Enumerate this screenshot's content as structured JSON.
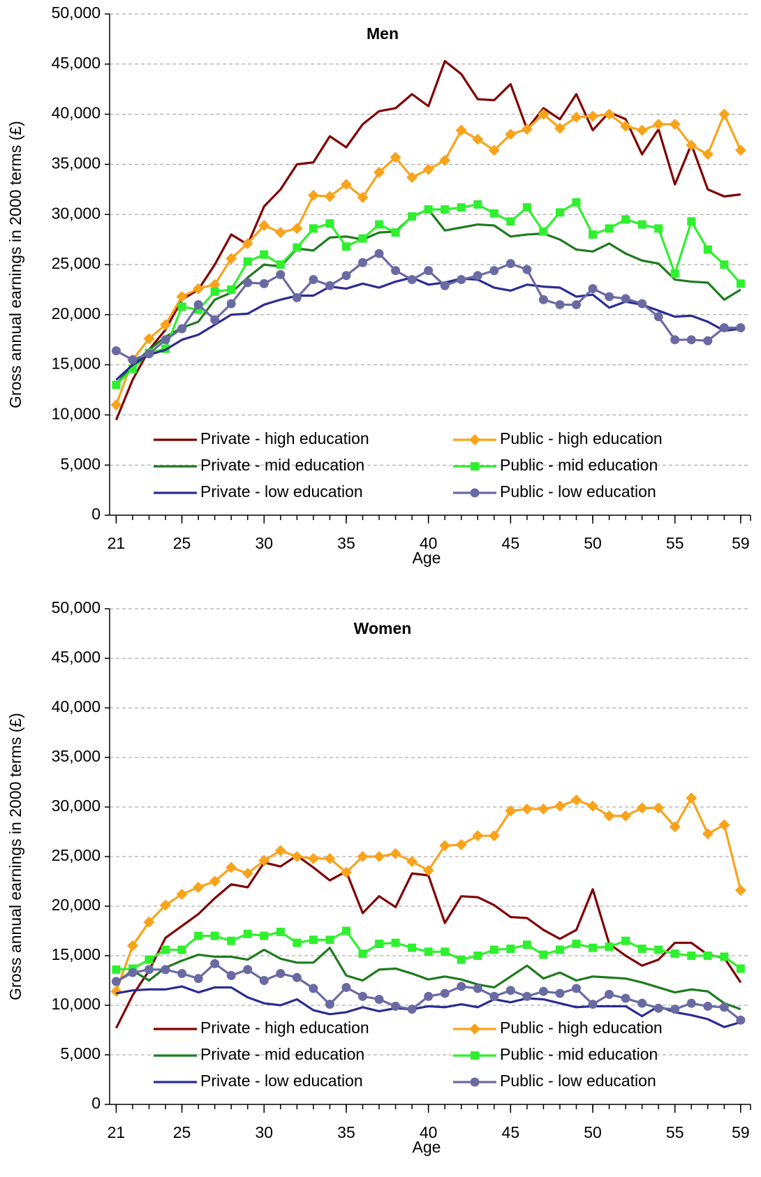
{
  "chart_data": [
    {
      "type": "line",
      "title": "Men",
      "ylabel": "Gross annual earnings in 2000 terms (£)",
      "xlabel": "Age",
      "x": [
        21,
        22,
        23,
        24,
        25,
        26,
        27,
        28,
        29,
        30,
        31,
        32,
        33,
        34,
        35,
        36,
        37,
        38,
        39,
        40,
        41,
        42,
        43,
        44,
        45,
        46,
        47,
        48,
        49,
        50,
        51,
        52,
        53,
        54,
        55,
        56,
        57,
        58,
        59
      ],
      "xlim": [
        20.6,
        59.6
      ],
      "xticks": [
        21,
        25,
        30,
        35,
        40,
        45,
        50,
        55,
        59
      ],
      "ylim": [
        0,
        50000
      ],
      "yticks": [
        0,
        {
          "value": 5000,
          "label": "5,000"
        },
        {
          "value": 10000,
          "label": "10,000"
        },
        {
          "value": 15000,
          "label": "15,000"
        },
        {
          "value": 20000,
          "label": "20,000"
        },
        {
          "value": 25000,
          "label": "25,000"
        },
        {
          "value": 30000,
          "label": "30,000"
        },
        {
          "value": 35000,
          "label": "35,000"
        },
        {
          "value": 40000,
          "label": "40,000"
        },
        {
          "value": 45000,
          "label": "45,000"
        },
        {
          "value": 50000,
          "label": "50,000"
        }
      ],
      "grid": true,
      "legend": "lower center",
      "series": [
        {
          "name": "Private - high education",
          "color": "#800000",
          "marker": "none",
          "values": [
            9500,
            13500,
            16500,
            18500,
            21500,
            22500,
            25000,
            28000,
            27000,
            30800,
            32500,
            35000,
            35200,
            37800,
            36700,
            39000,
            40300,
            40600,
            42000,
            40800,
            45300,
            44000,
            41500,
            41400,
            43000,
            38500,
            40600,
            39500,
            42000,
            38400,
            40200,
            39500,
            36000,
            38500,
            33000,
            37000,
            32500,
            31800,
            32000
          ]
        },
        {
          "name": "Public - high education",
          "color": "#f9a31b",
          "marker": "diamond",
          "values": [
            11000,
            15500,
            17600,
            19000,
            21800,
            22600,
            23000,
            25600,
            27100,
            28900,
            28200,
            28600,
            31900,
            31800,
            33000,
            31700,
            34200,
            35700,
            33700,
            34500,
            35400,
            38400,
            37500,
            36400,
            38000,
            38500,
            40000,
            38600,
            39700,
            39800,
            40000,
            38800,
            38400,
            39000,
            39000,
            36900,
            36000,
            40000,
            36400
          ]
        },
        {
          "name": "Private - mid education",
          "color": "#1e7b1e",
          "marker": "none",
          "values": [
            13000,
            15000,
            16500,
            17800,
            18700,
            19300,
            21500,
            22200,
            23700,
            25000,
            24800,
            26600,
            26400,
            27700,
            27800,
            27500,
            28200,
            28300,
            29800,
            30500,
            28400,
            28700,
            29000,
            28900,
            27800,
            28000,
            28100,
            27500,
            26500,
            26300,
            27100,
            26100,
            25400,
            25100,
            23500,
            23300,
            23200,
            21500,
            22500
          ]
        },
        {
          "name": "Public - mid education",
          "color": "#2ef02e",
          "marker": "square",
          "values": [
            13000,
            14600,
            16200,
            16600,
            20800,
            20500,
            22300,
            22500,
            25300,
            26000,
            25000,
            26700,
            28600,
            29100,
            26800,
            27600,
            29000,
            28200,
            29800,
            30500,
            30500,
            30700,
            31000,
            30100,
            29300,
            30700,
            28300,
            30200,
            31200,
            28000,
            28600,
            29500,
            29000,
            28600,
            24100,
            29300,
            26500,
            25000,
            23100
          ]
        },
        {
          "name": "Private - low education",
          "color": "#2b2b94",
          "marker": "none",
          "values": [
            13500,
            15000,
            16000,
            16500,
            17500,
            18000,
            19000,
            20000,
            20100,
            21000,
            21500,
            21900,
            21900,
            22800,
            22600,
            23100,
            22700,
            23300,
            23700,
            23000,
            23200,
            23600,
            23500,
            22700,
            22400,
            23000,
            22800,
            22700,
            21800,
            22000,
            20700,
            21300,
            21000,
            20400,
            19800,
            19900,
            19300,
            18400,
            18600
          ]
        },
        {
          "name": "Public - low education",
          "color": "#6a6aa3",
          "marker": "circle",
          "values": [
            16400,
            15500,
            16100,
            17500,
            18600,
            21000,
            19500,
            21100,
            23200,
            23100,
            24000,
            21700,
            23500,
            22900,
            23900,
            25200,
            26100,
            24400,
            23500,
            24400,
            22900,
            23500,
            23900,
            24400,
            25100,
            24500,
            21500,
            21000,
            21000,
            22600,
            21800,
            21600,
            21100,
            19800,
            17500,
            17500,
            17400,
            18700,
            18700
          ]
        }
      ]
    },
    {
      "type": "line",
      "title": "Women",
      "ylabel": "Gross annual earnings in 2000 terms (£)",
      "xlabel": "Age",
      "x": [
        21,
        22,
        23,
        24,
        25,
        26,
        27,
        28,
        29,
        30,
        31,
        32,
        33,
        34,
        35,
        36,
        37,
        38,
        39,
        40,
        41,
        42,
        43,
        44,
        45,
        46,
        47,
        48,
        49,
        50,
        51,
        52,
        53,
        54,
        55,
        56,
        57,
        58,
        59
      ],
      "xlim": [
        20.6,
        59.6
      ],
      "xticks": [
        21,
        25,
        30,
        35,
        40,
        45,
        50,
        55,
        59
      ],
      "ylim": [
        0,
        50000
      ],
      "yticks": [
        0,
        {
          "value": 5000,
          "label": "5,000"
        },
        {
          "value": 10000,
          "label": "10,000"
        },
        {
          "value": 15000,
          "label": "15,000"
        },
        {
          "value": 20000,
          "label": "20,000"
        },
        {
          "value": 25000,
          "label": "25,000"
        },
        {
          "value": 30000,
          "label": "30,000"
        },
        {
          "value": 35000,
          "label": "35,000"
        },
        {
          "value": 40000,
          "label": "40,000"
        },
        {
          "value": 45000,
          "label": "45,000"
        },
        {
          "value": 50000,
          "label": "50,000"
        }
      ],
      "grid": true,
      "legend": "lower center",
      "series": [
        {
          "name": "Private - high education",
          "color": "#800000",
          "marker": "none",
          "values": [
            7700,
            11000,
            13500,
            16800,
            18000,
            19200,
            20800,
            22200,
            21900,
            24400,
            24000,
            25100,
            23900,
            22600,
            23500,
            19300,
            21000,
            19900,
            23300,
            23100,
            18300,
            21000,
            20900,
            20100,
            18900,
            18800,
            17600,
            16700,
            17600,
            21700,
            16200,
            15000,
            14000,
            14600,
            16300,
            16300,
            15100,
            14800,
            12300
          ]
        },
        {
          "name": "Public - high education",
          "color": "#f9a31b",
          "marker": "diamond",
          "values": [
            11400,
            16000,
            18400,
            20100,
            21200,
            21900,
            22500,
            23900,
            23300,
            24600,
            25600,
            25000,
            24800,
            24800,
            23400,
            25000,
            25000,
            25300,
            24500,
            23600,
            26100,
            26200,
            27100,
            27100,
            29600,
            29800,
            29800,
            30100,
            30700,
            30100,
            29100,
            29100,
            29900,
            29900,
            28000,
            30900,
            27300,
            28200,
            21600
          ]
        },
        {
          "name": "Private - mid education",
          "color": "#1e7b1e",
          "marker": "none",
          "values": [
            12300,
            13500,
            12500,
            13800,
            14500,
            15100,
            14900,
            14900,
            14600,
            15600,
            14700,
            14300,
            14300,
            15800,
            13000,
            12500,
            13600,
            13700,
            13200,
            12600,
            12900,
            12600,
            12100,
            11800,
            12900,
            14000,
            12700,
            13300,
            12500,
            12900,
            12800,
            12700,
            12300,
            11800,
            11300,
            11600,
            11400,
            10200,
            9600
          ]
        },
        {
          "name": "Public - mid education",
          "color": "#2ef02e",
          "marker": "square",
          "values": [
            13600,
            13700,
            14600,
            15600,
            15600,
            17000,
            17000,
            16500,
            17200,
            17000,
            17400,
            16300,
            16600,
            16600,
            17500,
            15200,
            16200,
            16300,
            15800,
            15400,
            15400,
            14600,
            15000,
            15600,
            15700,
            16100,
            15100,
            15600,
            16200,
            15800,
            15900,
            16500,
            15700,
            15600,
            15200,
            15000,
            15000,
            14900,
            13700
          ]
        },
        {
          "name": "Private - low education",
          "color": "#2b2b94",
          "marker": "none",
          "values": [
            11200,
            11500,
            11600,
            11600,
            11900,
            11300,
            11800,
            11800,
            10800,
            10200,
            10000,
            10600,
            9500,
            9100,
            9300,
            9800,
            9400,
            9700,
            9600,
            9900,
            9800,
            10100,
            9800,
            10600,
            10300,
            10700,
            10600,
            10200,
            9800,
            9900,
            9900,
            9900,
            8900,
            9900,
            9300,
            9000,
            8600,
            7800,
            8300
          ]
        },
        {
          "name": "Public - low education",
          "color": "#6a6aa3",
          "marker": "circle",
          "values": [
            12400,
            13300,
            13600,
            13600,
            13200,
            12700,
            14200,
            13000,
            13600,
            12500,
            13200,
            12800,
            11700,
            10100,
            11800,
            10900,
            10600,
            9900,
            9600,
            10900,
            11200,
            11900,
            11700,
            10900,
            11500,
            10900,
            11400,
            11200,
            11700,
            10100,
            11100,
            10700,
            10200,
            9700,
            9600,
            10200,
            9900,
            9800,
            8500
          ]
        }
      ]
    }
  ]
}
